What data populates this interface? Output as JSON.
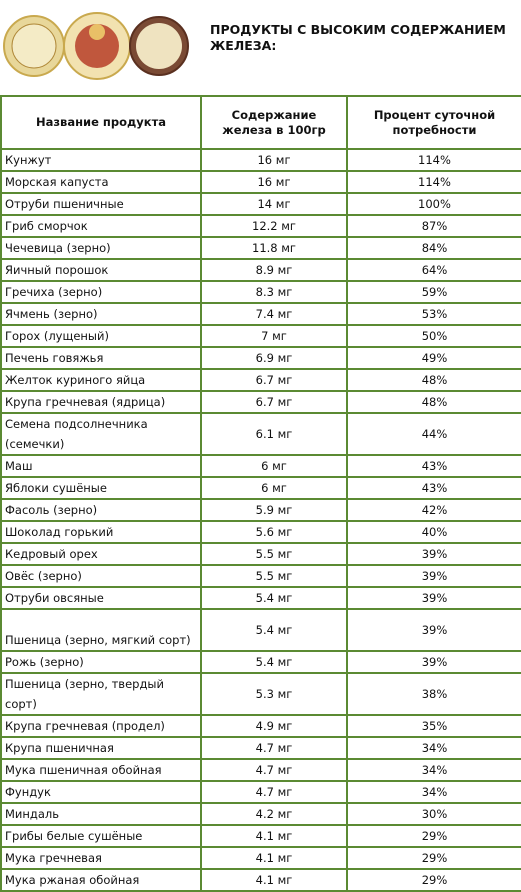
{
  "header": {
    "title": "ПРОДУКТЫ С ВЫСОКИМ СОДЕРЖАНИЕМ ЖЕЛЕЗА:"
  },
  "table": {
    "columns": [
      "Название продукта",
      "Содержание железа в 100гр",
      "Процент суточной потребности"
    ],
    "rows": [
      [
        "Кунжут",
        "16 мг",
        "114%"
      ],
      [
        "Морская капуста",
        "16 мг",
        "114%"
      ],
      [
        "Отруби пшеничные",
        "14 мг",
        "100%"
      ],
      [
        "Гриб сморчок",
        "12.2 мг",
        "87%"
      ],
      [
        "Чечевица (зерно)",
        "11.8 мг",
        "84%"
      ],
      [
        "Яичный порошок",
        "8.9 мг",
        "64%"
      ],
      [
        "Гречиха (зерно)",
        "8.3 мг",
        "59%"
      ],
      [
        "Ячмень (зерно)",
        "7.4 мг",
        "53%"
      ],
      [
        "Горох (лущеный)",
        "7 мг",
        "50%"
      ],
      [
        "Печень говяжья",
        "6.9 мг",
        "49%"
      ],
      [
        "Желток куриного яйца",
        "6.7 мг",
        "48%"
      ],
      [
        "Крупа гречневая (ядрица)",
        "6.7 мг",
        "48%"
      ],
      [
        "Семена подсолнечника (семечки)",
        "6.1 мг",
        "44%"
      ],
      [
        "Маш",
        "6 мг",
        "43%"
      ],
      [
        "Яблоки сушёные",
        "6 мг",
        "43%"
      ],
      [
        "Фасоль (зерно)",
        "5.9 мг",
        "42%"
      ],
      [
        "Шоколад горький",
        "5.6 мг",
        "40%"
      ],
      [
        "Кедровый орех",
        "5.5 мг",
        "39%"
      ],
      [
        "Овёс (зерно)",
        "5.5 мг",
        "39%"
      ],
      [
        "Отруби овсяные",
        "5.4 мг",
        "39%"
      ],
      [
        "Пшеница (зерно, мягкий сорт)",
        "5.4 мг",
        "39%"
      ],
      [
        "Рожь (зерно)",
        "5.4 мг",
        "39%"
      ],
      [
        "Пшеница (зерно, твердый сорт)",
        "5.3 мг",
        "38%"
      ],
      [
        "Крупа гречневая (продел)",
        "4.9 мг",
        "35%"
      ],
      [
        "Крупа пшеничная",
        "4.7 мг",
        "34%"
      ],
      [
        "Мука пшеничная обойная",
        "4.7 мг",
        "34%"
      ],
      [
        "Фундук",
        "4.7 мг",
        "34%"
      ],
      [
        "Миндаль",
        "4.2 мг",
        "30%"
      ],
      [
        "Грибы белые сушёные",
        "4.1 мг",
        "29%"
      ],
      [
        "Мука гречневая",
        "4.1 мг",
        "29%"
      ],
      [
        "Мука ржаная обойная",
        "4.1 мг",
        "29%"
      ]
    ]
  }
}
